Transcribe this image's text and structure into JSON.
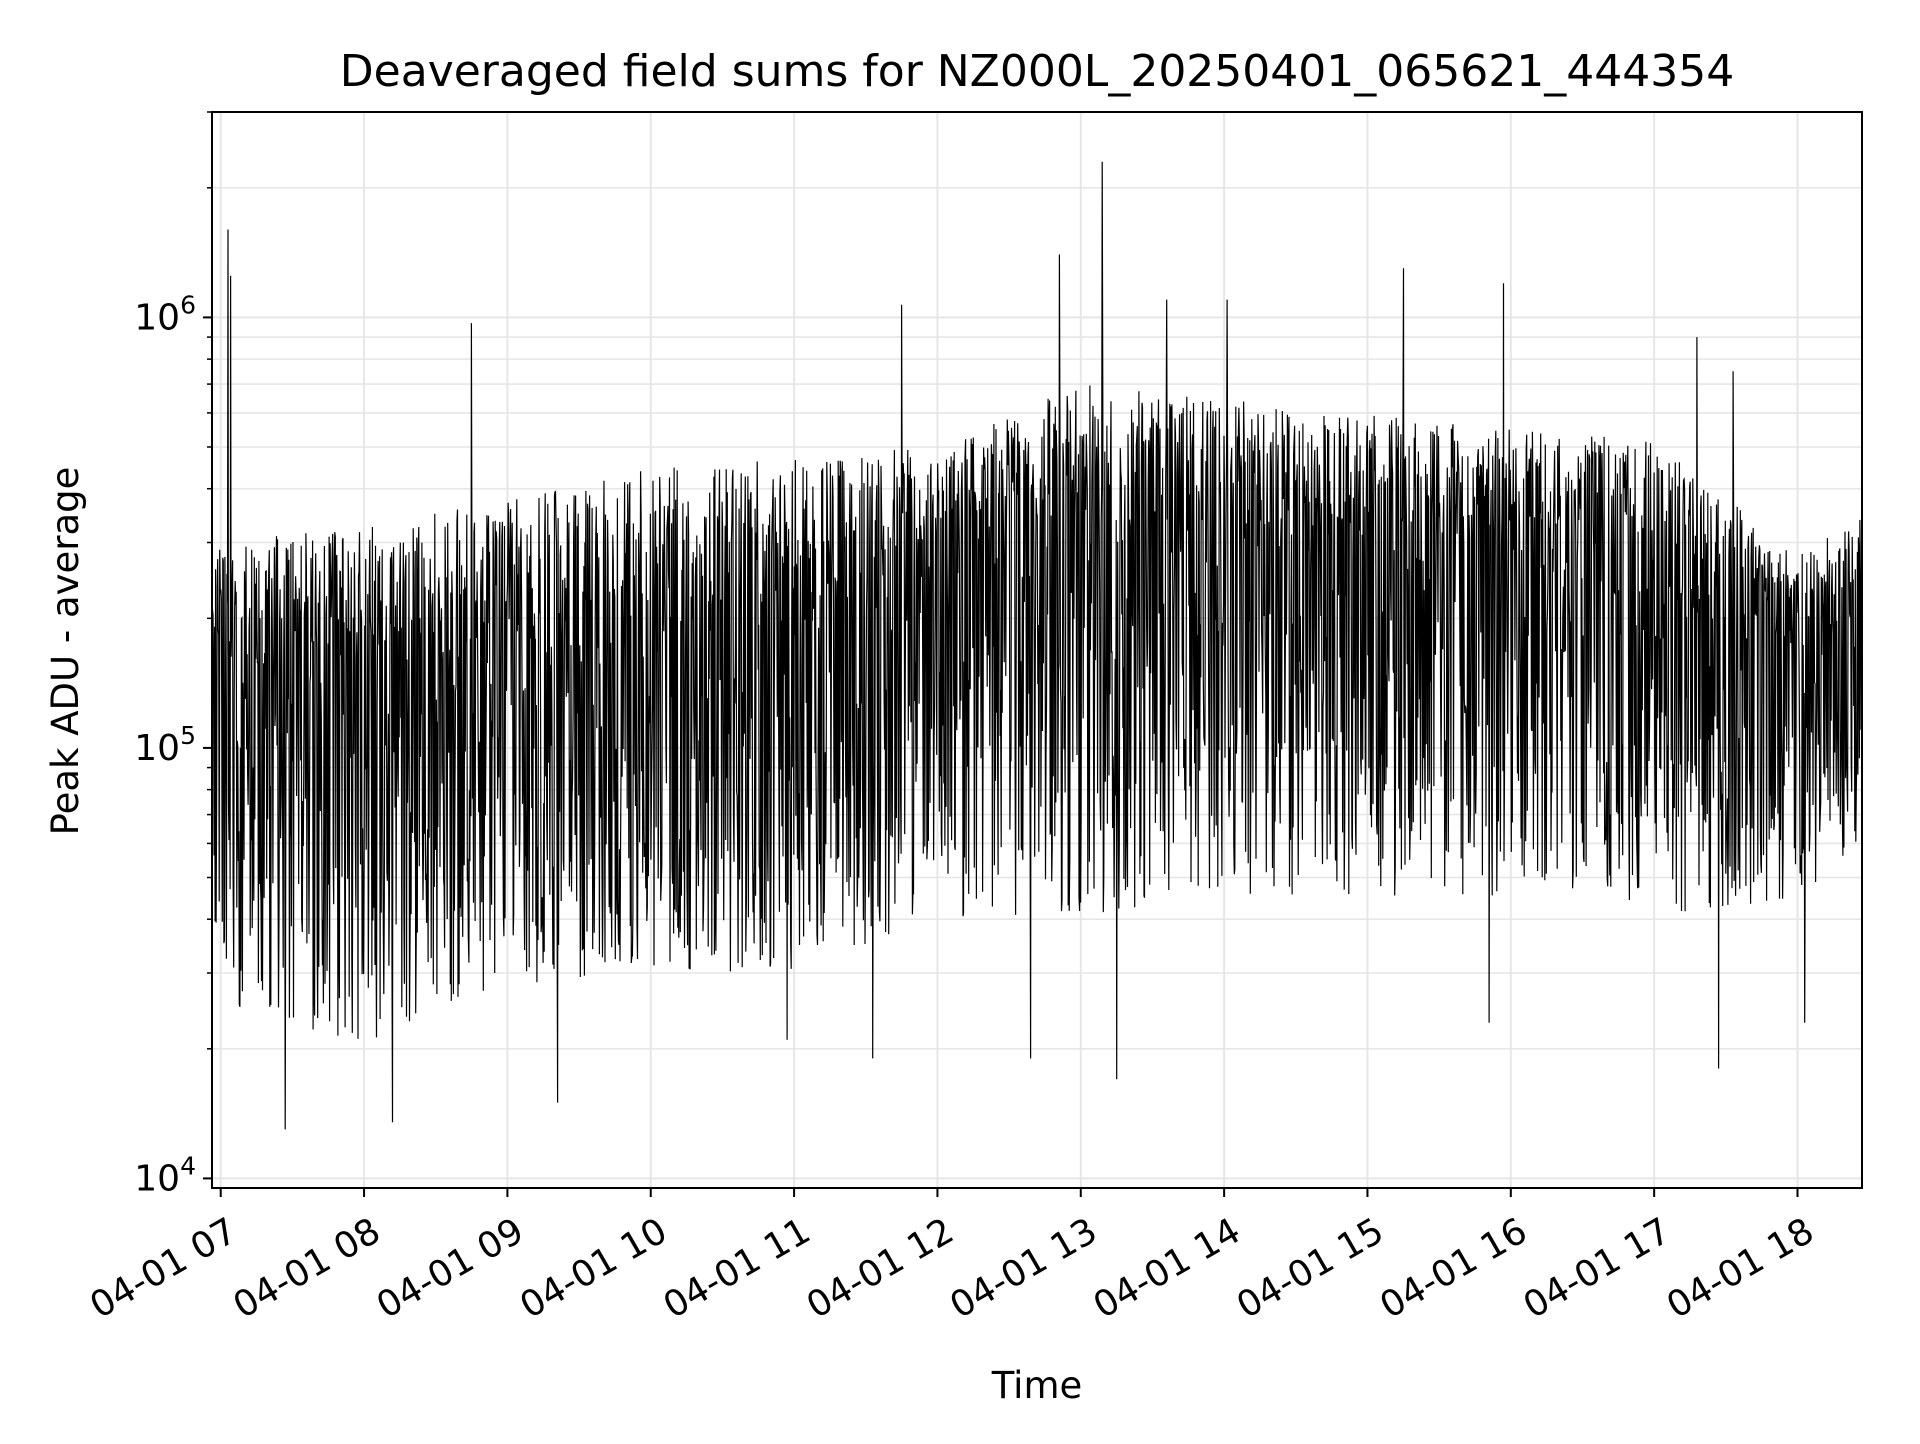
{
  "chart_data": {
    "type": "line",
    "title": "Deaveraged field sums for NZ000L_20250401_065621_444354",
    "xlabel": "Time",
    "ylabel": "Peak ADU - average",
    "x_start": "04-01 06:56:21",
    "x_end": "04-01 18:27",
    "xlim": [
      "04-01 06:56",
      "04-01 18:27"
    ],
    "ylim": [
      9500,
      3000000
    ],
    "y_scale": "log",
    "grid": true,
    "legend": "none",
    "line_color": "#000000",
    "x_tick_labels": [
      "04-01 07",
      "04-01 08",
      "04-01 09",
      "04-01 10",
      "04-01 11",
      "04-01 12",
      "04-01 13",
      "04-01 14",
      "04-01 15",
      "04-01 16",
      "04-01 17",
      "04-01 18"
    ],
    "y_ticks": [
      {
        "base": "10",
        "exp": "4",
        "value": 10000
      },
      {
        "base": "10",
        "exp": "5",
        "value": 100000
      },
      {
        "base": "10",
        "exp": "6",
        "value": 1000000
      }
    ],
    "series": [
      {
        "x_hours": [
          7.0,
          8.0,
          9.0,
          10.0,
          11.0,
          12.0,
          13.0,
          14.0,
          15.0,
          16.0,
          17.0,
          18.0,
          18.45
        ],
        "envelope_low": [
          25000,
          20000,
          28000,
          30000,
          30000,
          40000,
          40000,
          45000,
          45000,
          45000,
          40000,
          45000,
          60000
        ],
        "envelope_high": [
          300000,
          330000,
          380000,
          450000,
          480000,
          500000,
          700000,
          650000,
          600000,
          550000,
          520000,
          280000,
          350000
        ],
        "median": [
          150000,
          130000,
          140000,
          150000,
          170000,
          230000,
          300000,
          330000,
          280000,
          250000,
          200000,
          160000,
          200000
        ],
        "spikes": [
          {
            "x": 7.05,
            "y": 1600000
          },
          {
            "x": 7.07,
            "y": 1250000
          },
          {
            "x": 8.75,
            "y": 970000
          },
          {
            "x": 11.75,
            "y": 1070000
          },
          {
            "x": 12.85,
            "y": 1400000
          },
          {
            "x": 13.15,
            "y": 2300000
          },
          {
            "x": 13.6,
            "y": 1100000
          },
          {
            "x": 14.02,
            "y": 1100000
          },
          {
            "x": 15.25,
            "y": 1300000
          },
          {
            "x": 15.95,
            "y": 1200000
          },
          {
            "x": 17.3,
            "y": 900000
          },
          {
            "x": 17.55,
            "y": 750000
          }
        ],
        "dips": [
          {
            "x": 7.45,
            "y": 13000
          },
          {
            "x": 8.2,
            "y": 13500
          },
          {
            "x": 9.35,
            "y": 15000
          },
          {
            "x": 10.95,
            "y": 21000
          },
          {
            "x": 11.55,
            "y": 19000
          },
          {
            "x": 12.65,
            "y": 19000
          },
          {
            "x": 13.25,
            "y": 17000
          },
          {
            "x": 15.85,
            "y": 23000
          },
          {
            "x": 17.45,
            "y": 18000
          },
          {
            "x": 18.05,
            "y": 23000
          }
        ]
      }
    ]
  }
}
